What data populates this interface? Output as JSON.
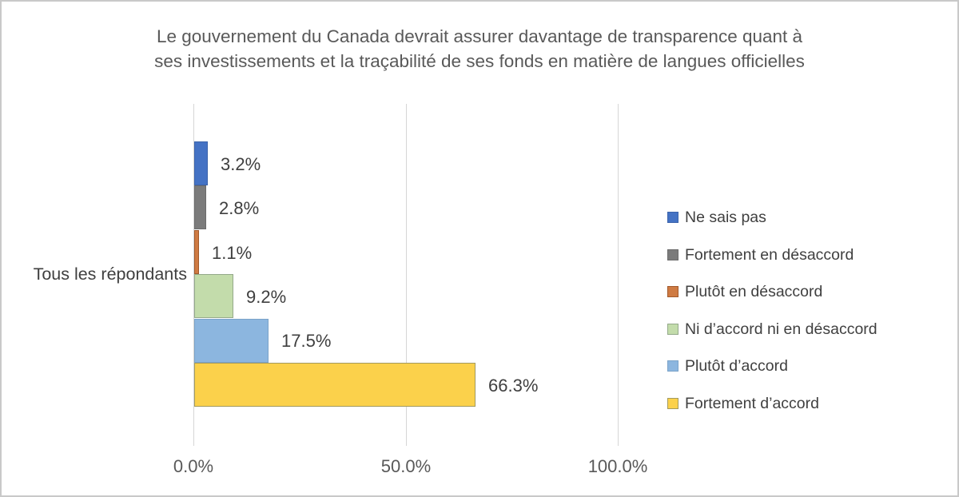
{
  "chart_data": {
    "type": "bar",
    "orientation": "horizontal",
    "title_line1": "Le gouvernement du Canada devrait assurer davantage de transparence quant à",
    "title_line2": "ses investissements et la traçabilité de ses fonds en matière de langues officielles",
    "category": "Tous les répondants",
    "series": [
      {
        "name": "Ne sais pas",
        "value": 3.2,
        "label": "3.2%",
        "fill": "#4472c4",
        "border": "#3b63ab"
      },
      {
        "name": "Fortement en désaccord",
        "value": 2.8,
        "label": "2.8%",
        "fill": "#7b7b7b",
        "border": "#6b6b6b"
      },
      {
        "name": "Plutôt en désaccord",
        "value": 1.1,
        "label": "1.1%",
        "fill": "#cf7b43",
        "border": "#a2592b"
      },
      {
        "name": "Ni d’accord ni en désaccord",
        "value": 9.2,
        "label": "9.2%",
        "fill": "#c3dcab",
        "border": "#94a98a"
      },
      {
        "name": "Plutôt d’accord",
        "value": 17.5,
        "label": "17.5%",
        "fill": "#8cb6df",
        "border": "#7ba3c9"
      },
      {
        "name": "Fortement d’accord",
        "value": 66.3,
        "label": "66.3%",
        "fill": "#fbd14b",
        "border": "#a39a5e"
      }
    ],
    "x_axis": {
      "min": 0,
      "max": 100,
      "ticks": [
        {
          "value": 0,
          "label": "0.0%"
        },
        {
          "value": 50,
          "label": "50.0%"
        },
        {
          "value": 100,
          "label": "100.0%"
        }
      ]
    },
    "legend_position": "right",
    "grid": true,
    "gridline_color": "#d6d6d6"
  }
}
